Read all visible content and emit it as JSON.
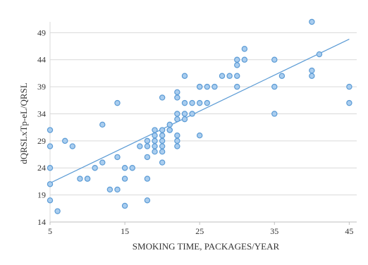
{
  "chart_data": {
    "type": "scatter",
    "title": "",
    "xlabel": "SMOKING TIME, PACKAGES/YEAR",
    "ylabel": "dQRSLxTp-eL/QRSL",
    "xlim": [
      5,
      46
    ],
    "ylim": [
      14,
      51
    ],
    "xticks": [
      "5",
      "15",
      "25",
      "35",
      "45"
    ],
    "yticks": [
      "14",
      "19",
      "24",
      "29",
      "34",
      "39",
      "44",
      "49"
    ],
    "grid": "horizontal",
    "legend": "none",
    "colors": {
      "marker_fill": "#a9cdef",
      "marker_edge": "#5b9bd5",
      "trendline": "#5b9bd5",
      "grid": "#d9d9d9"
    },
    "trendline": {
      "type": "linear",
      "x": [
        5,
        45
      ],
      "y": [
        21.2,
        47.8
      ]
    },
    "series": [
      {
        "points": [
          [
            5,
            31
          ],
          [
            5,
            28
          ],
          [
            5,
            24
          ],
          [
            5,
            21
          ],
          [
            5,
            18
          ],
          [
            6,
            16
          ],
          [
            7,
            29
          ],
          [
            8,
            28
          ],
          [
            9,
            22
          ],
          [
            10,
            22
          ],
          [
            10,
            22
          ],
          [
            11,
            24
          ],
          [
            12,
            32
          ],
          [
            12,
            25
          ],
          [
            13,
            20
          ],
          [
            14,
            36
          ],
          [
            14,
            26
          ],
          [
            14,
            20
          ],
          [
            15,
            24
          ],
          [
            15,
            22
          ],
          [
            15,
            17
          ],
          [
            16,
            24
          ],
          [
            17,
            28
          ],
          [
            18,
            29
          ],
          [
            18,
            28
          ],
          [
            18,
            26
          ],
          [
            18,
            22
          ],
          [
            18,
            18
          ],
          [
            19,
            31
          ],
          [
            19,
            30
          ],
          [
            19,
            29
          ],
          [
            19,
            28
          ],
          [
            19,
            27
          ],
          [
            20,
            37
          ],
          [
            20,
            31
          ],
          [
            20,
            30
          ],
          [
            20,
            29
          ],
          [
            20,
            28
          ],
          [
            20,
            27
          ],
          [
            20,
            25
          ],
          [
            21,
            32
          ],
          [
            21,
            31
          ],
          [
            21,
            31
          ],
          [
            22,
            38
          ],
          [
            22,
            37
          ],
          [
            22,
            34
          ],
          [
            22,
            33
          ],
          [
            22,
            30
          ],
          [
            22,
            29
          ],
          [
            22,
            28
          ],
          [
            23,
            41
          ],
          [
            23,
            36
          ],
          [
            23,
            34
          ],
          [
            23,
            33
          ],
          [
            24,
            36
          ],
          [
            24,
            34
          ],
          [
            25,
            39
          ],
          [
            25,
            39
          ],
          [
            25,
            36
          ],
          [
            25,
            30
          ],
          [
            26,
            39
          ],
          [
            26,
            36
          ],
          [
            27,
            39
          ],
          [
            28,
            41
          ],
          [
            29,
            41
          ],
          [
            30,
            44
          ],
          [
            30,
            43
          ],
          [
            30,
            41
          ],
          [
            30,
            39
          ],
          [
            31,
            46
          ],
          [
            31,
            44
          ],
          [
            35,
            44
          ],
          [
            35,
            39
          ],
          [
            35,
            34
          ],
          [
            36,
            41
          ],
          [
            40,
            51
          ],
          [
            40,
            42
          ],
          [
            40,
            41
          ],
          [
            41,
            45
          ],
          [
            45,
            39
          ],
          [
            45,
            36
          ]
        ]
      }
    ]
  }
}
